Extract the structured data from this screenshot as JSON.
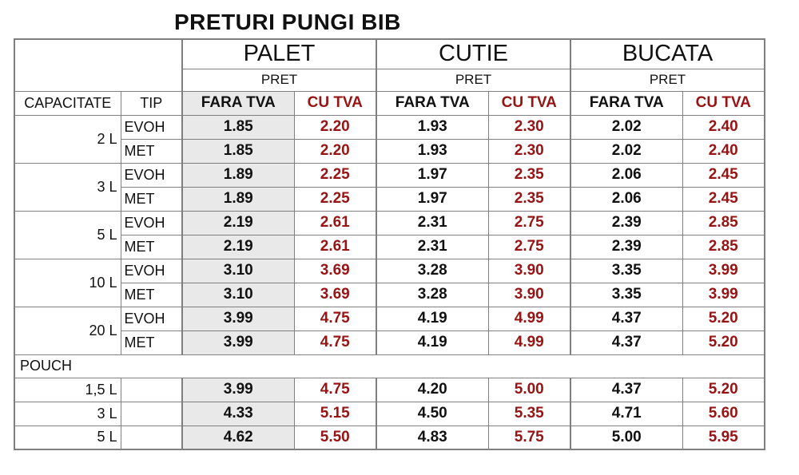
{
  "title": "PRETURI PUNGI BIB",
  "colors": {
    "accent_red": "#961414",
    "shaded_column_bg": "#e9e9e9",
    "grid_border": "#7f7f7f"
  },
  "table": {
    "groups": [
      {
        "label": "PALET",
        "sub": "PRET"
      },
      {
        "label": "CUTIE",
        "sub": "PRET"
      },
      {
        "label": "BUCATA",
        "sub": "PRET"
      }
    ],
    "col_headers": {
      "capacity": "CAPACITATE",
      "type": "TIP",
      "fara": "FARA TVA",
      "cu": "CU TVA"
    },
    "bib_rows": [
      {
        "capacity": "2 L",
        "rows": [
          {
            "tip": "EVOH",
            "values": [
              "1.85",
              "2.20",
              "1.93",
              "2.30",
              "2.02",
              "2.40"
            ]
          },
          {
            "tip": "MET",
            "values": [
              "1.85",
              "2.20",
              "1.93",
              "2.30",
              "2.02",
              "2.40"
            ]
          }
        ]
      },
      {
        "capacity": "3 L",
        "rows": [
          {
            "tip": "EVOH",
            "values": [
              "1.89",
              "2.25",
              "1.97",
              "2.35",
              "2.06",
              "2.45"
            ]
          },
          {
            "tip": "MET",
            "values": [
              "1.89",
              "2.25",
              "1.97",
              "2.35",
              "2.06",
              "2.45"
            ]
          }
        ]
      },
      {
        "capacity": "5 L",
        "rows": [
          {
            "tip": "EVOH",
            "values": [
              "2.19",
              "2.61",
              "2.31",
              "2.75",
              "2.39",
              "2.85"
            ]
          },
          {
            "tip": "MET",
            "values": [
              "2.19",
              "2.61",
              "2.31",
              "2.75",
              "2.39",
              "2.85"
            ]
          }
        ]
      },
      {
        "capacity": "10 L",
        "rows": [
          {
            "tip": "EVOH",
            "values": [
              "3.10",
              "3.69",
              "3.28",
              "3.90",
              "3.35",
              "3.99"
            ]
          },
          {
            "tip": "MET",
            "values": [
              "3.10",
              "3.69",
              "3.28",
              "3.90",
              "3.35",
              "3.99"
            ]
          }
        ]
      },
      {
        "capacity": "20 L",
        "rows": [
          {
            "tip": "EVOH",
            "values": [
              "3.99",
              "4.75",
              "4.19",
              "4.99",
              "4.37",
              "5.20"
            ]
          },
          {
            "tip": "MET",
            "values": [
              "3.99",
              "4.75",
              "4.19",
              "4.99",
              "4.37",
              "5.20"
            ]
          }
        ]
      }
    ],
    "pouch_section": {
      "label": "POUCH",
      "rows": [
        {
          "capacity": "1,5 L",
          "tip": "",
          "values": [
            "3.99",
            "4.75",
            "4.20",
            "5.00",
            "4.37",
            "5.20"
          ]
        },
        {
          "capacity": "3 L",
          "tip": "",
          "values": [
            "4.33",
            "5.15",
            "4.50",
            "5.35",
            "4.71",
            "5.60"
          ]
        },
        {
          "capacity": "5 L",
          "tip": "",
          "values": [
            "4.62",
            "5.50",
            "4.83",
            "5.75",
            "5.00",
            "5.95"
          ]
        }
      ]
    }
  }
}
